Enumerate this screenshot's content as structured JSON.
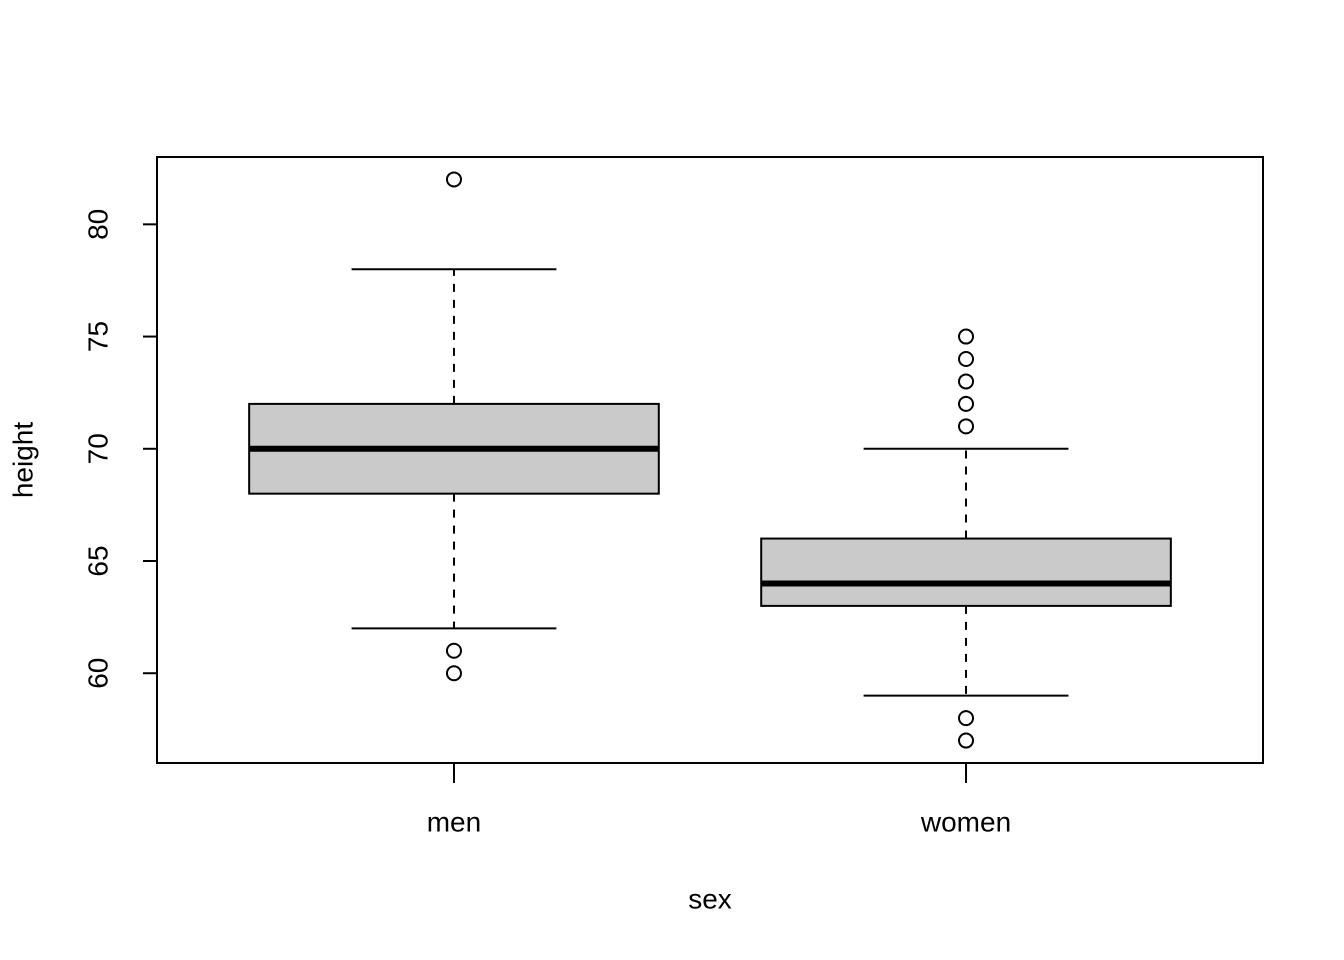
{
  "chart_data": {
    "type": "boxplot",
    "xlabel": "sex",
    "ylabel": "height",
    "categories": [
      "men",
      "women"
    ],
    "series": [
      {
        "color": "#cacaca",
        "min": [
          62,
          59
        ],
        "q1": [
          68,
          63
        ],
        "median": [
          70,
          64
        ],
        "q3": [
          72,
          66
        ],
        "max": [
          78,
          70
        ],
        "outliers": [
          [
            82,
            61,
            60
          ],
          [
            75,
            74,
            73,
            72,
            71,
            58,
            57
          ]
        ]
      }
    ],
    "ylim": [
      56,
      83
    ],
    "yticks": [
      60,
      65,
      70,
      75,
      80
    ]
  }
}
